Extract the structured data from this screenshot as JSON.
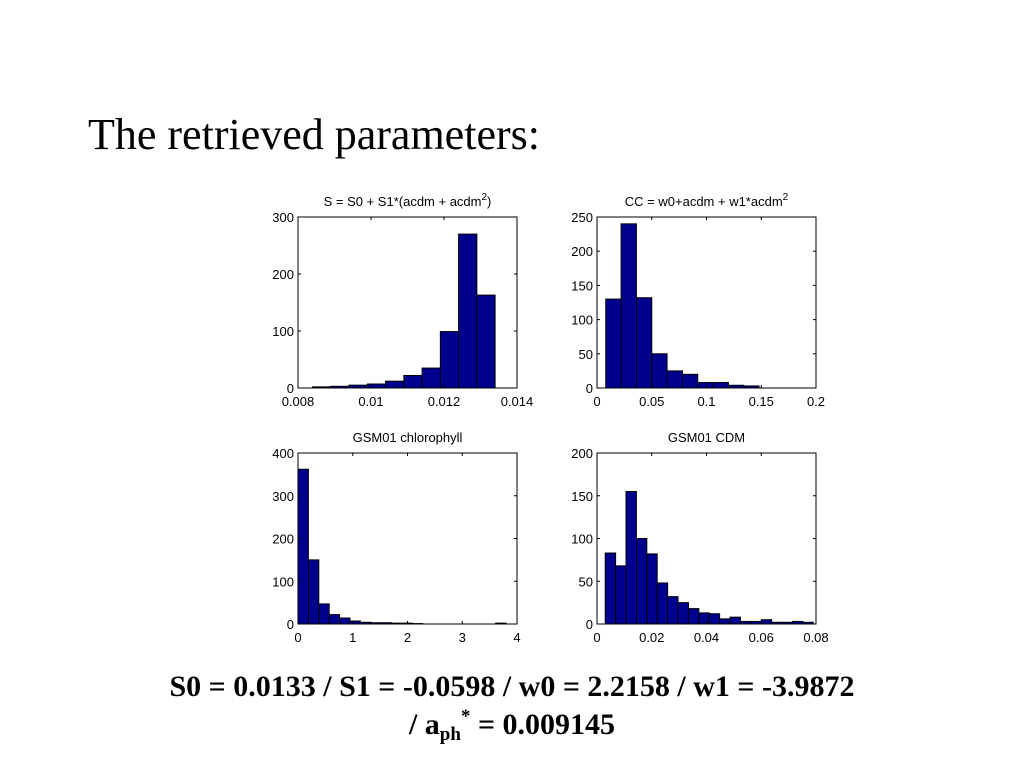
{
  "slide": {
    "title": "The retrieved parameters:"
  },
  "colors": {
    "bar_fill": "#00008f",
    "bar_stroke": "#000000",
    "axis": "#000000"
  },
  "summary": {
    "line1": "S0 = 0.0133 / S1 = -0.0598 / w0 = 2.2158 / w1 = -3.9872",
    "line2_prefix": "/ a",
    "line2_sub": "ph",
    "line2_sup": "*",
    "line2_suffix": " = 0.009145"
  },
  "chart_data": [
    {
      "type": "bar",
      "title": "S = S0 + S1*(acdm + acdm",
      "title_sup": "2",
      "title_suffix": ")",
      "xlim": [
        0.008,
        0.014
      ],
      "ylim": [
        0,
        300
      ],
      "xticks": [
        0.008,
        0.01,
        0.012,
        0.014
      ],
      "xtick_labels": [
        "0.008",
        "0.01",
        "0.012",
        "0.014"
      ],
      "yticks": [
        0,
        100,
        200,
        300
      ],
      "ytick_labels": [
        "0",
        "100",
        "200",
        "300"
      ],
      "bin_edges": [
        0.0084,
        0.0089,
        0.0094,
        0.0099,
        0.0104,
        0.0109,
        0.0114,
        0.0119,
        0.0124,
        0.0129,
        0.0134
      ],
      "values": [
        2,
        3,
        5,
        7,
        12,
        22,
        35,
        99,
        270,
        163
      ],
      "grid": false,
      "legend": "none"
    },
    {
      "type": "bar",
      "title": "CC = w0+acdm + w1*acdm",
      "title_sup": "2",
      "title_suffix": "",
      "xlim": [
        0,
        0.2
      ],
      "ylim": [
        0,
        250
      ],
      "xticks": [
        0,
        0.05,
        0.1,
        0.15,
        0.2
      ],
      "xtick_labels": [
        "0",
        "0.05",
        "0.1",
        "0.15",
        "0.2"
      ],
      "yticks": [
        0,
        50,
        100,
        150,
        200,
        250
      ],
      "ytick_labels": [
        "0",
        "50",
        "100",
        "150",
        "200",
        "250"
      ],
      "bin_edges": [
        0.008,
        0.022,
        0.036,
        0.05,
        0.064,
        0.078,
        0.092,
        0.106,
        0.12,
        0.134,
        0.148
      ],
      "values": [
        130,
        240,
        132,
        50,
        25,
        20,
        8,
        8,
        4,
        3
      ],
      "grid": false,
      "legend": "none"
    },
    {
      "type": "bar",
      "title": "GSM01 chlorophyll",
      "title_sup": "",
      "title_suffix": "",
      "xlim": [
        0,
        4
      ],
      "ylim": [
        0,
        400
      ],
      "xticks": [
        0,
        1,
        2,
        3,
        4
      ],
      "xtick_labels": [
        "0",
        "1",
        "2",
        "3",
        "4"
      ],
      "yticks": [
        0,
        100,
        200,
        300,
        400
      ],
      "ytick_labels": [
        "0",
        "100",
        "200",
        "300",
        "400"
      ],
      "bin_edges": [
        0,
        0.19,
        0.38,
        0.57,
        0.76,
        0.95,
        1.14,
        1.33,
        1.52,
        1.71,
        1.9,
        2.09,
        2.28,
        2.47,
        2.66,
        2.85,
        3.04,
        3.23,
        3.42,
        3.61,
        3.8
      ],
      "values": [
        362,
        150,
        47,
        22,
        14,
        7,
        4,
        3,
        3,
        2,
        2,
        1,
        0,
        0,
        0,
        0,
        0,
        0,
        0,
        2
      ],
      "grid": false,
      "legend": "none"
    },
    {
      "type": "bar",
      "title": "GSM01 CDM",
      "title_sup": "",
      "title_suffix": "",
      "xlim": [
        0,
        0.08
      ],
      "ylim": [
        0,
        200
      ],
      "xticks": [
        0,
        0.02,
        0.04,
        0.06,
        0.08
      ],
      "xtick_labels": [
        "0",
        "0.02",
        "0.04",
        "0.06",
        "0.08"
      ],
      "yticks": [
        0,
        50,
        100,
        150,
        200
      ],
      "ytick_labels": [
        "0",
        "50",
        "100",
        "150",
        "200"
      ],
      "bin_edges": [
        0.003,
        0.0068,
        0.0106,
        0.0144,
        0.0182,
        0.022,
        0.0258,
        0.0296,
        0.0334,
        0.0372,
        0.041,
        0.0448,
        0.0486,
        0.0524,
        0.0562,
        0.06,
        0.0638,
        0.0676,
        0.0714,
        0.0752,
        0.079
      ],
      "values": [
        83,
        68,
        155,
        100,
        82,
        48,
        32,
        25,
        18,
        13,
        12,
        6,
        8,
        3,
        3,
        5,
        2,
        2,
        3,
        2
      ],
      "grid": false,
      "legend": "none"
    }
  ]
}
